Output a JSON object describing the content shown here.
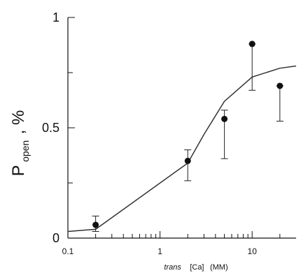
{
  "chart_data": {
    "type": "scatter",
    "x_scale": "log",
    "xlim": [
      0.1,
      30
    ],
    "ylim": [
      0,
      1
    ],
    "grid": false,
    "x_ticks": [
      {
        "value": 0.1,
        "label": "0.1"
      },
      {
        "value": 1,
        "label": "1"
      },
      {
        "value": 10,
        "label": "10"
      }
    ],
    "y_ticks": [
      {
        "value": 0,
        "label": "0"
      },
      {
        "value": 0.5,
        "label": "0.5"
      },
      {
        "value": 1,
        "label": "1"
      }
    ],
    "x_minor_ticks": [
      0.2,
      0.3,
      0.4,
      0.5,
      0.6,
      0.7,
      0.8,
      0.9,
      2,
      3,
      4,
      5,
      6,
      7,
      8,
      9,
      20
    ],
    "y_minor_ticks": [
      0.25,
      0.75
    ],
    "xlabel_parts": {
      "trans": "trans",
      "ca": "[Ca]",
      "unit": "(MM)"
    },
    "ylabel_parts": {
      "p": "P",
      "sub": "open",
      "suffix": ", %"
    },
    "points": [
      {
        "x": 0.2,
        "y": 0.06,
        "err_low": 0.03,
        "err_high": 0.1
      },
      {
        "x": 2,
        "y": 0.35,
        "err_low": 0.26,
        "err_high": 0.4
      },
      {
        "x": 5,
        "y": 0.54,
        "err_low": 0.36,
        "err_high": 0.58
      },
      {
        "x": 10,
        "y": 0.88,
        "err_low": 0.67,
        "err_high": 0.88
      },
      {
        "x": 20,
        "y": 0.69,
        "err_low": 0.53,
        "err_high": 0.69
      }
    ],
    "fit_line": [
      {
        "x": 0.1,
        "y": 0.03
      },
      {
        "x": 0.2,
        "y": 0.04
      },
      {
        "x": 2,
        "y": 0.34
      },
      {
        "x": 3,
        "y": 0.47
      },
      {
        "x": 5,
        "y": 0.62
      },
      {
        "x": 10,
        "y": 0.73
      },
      {
        "x": 20,
        "y": 0.77
      },
      {
        "x": 30,
        "y": 0.78
      }
    ]
  }
}
